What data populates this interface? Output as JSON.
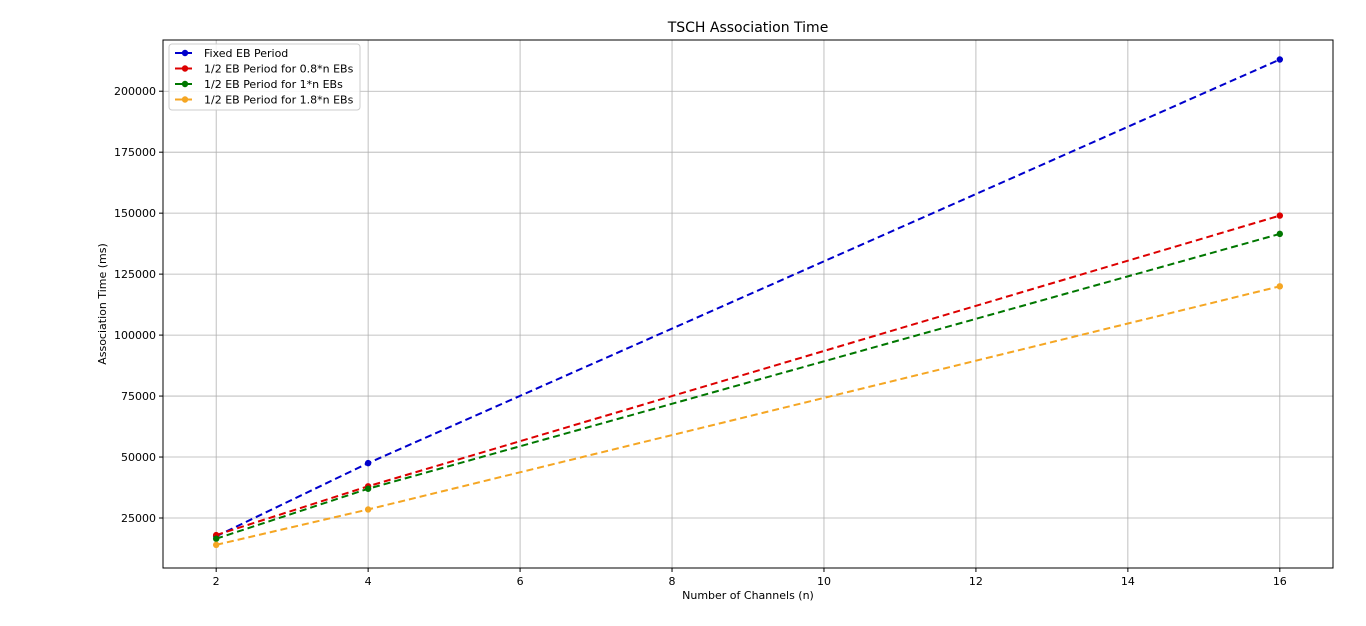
{
  "chart_data": {
    "type": "line",
    "title": "TSCH Association Time",
    "xlabel": "Number of Channels (n)",
    "ylabel": "Association Time (ms)",
    "xlim": [
      1.3,
      16.7
    ],
    "ylim": [
      4500,
      221000
    ],
    "xticks": [
      2,
      4,
      6,
      8,
      10,
      12,
      14,
      16
    ],
    "yticks": [
      25000,
      50000,
      75000,
      100000,
      125000,
      150000,
      175000,
      200000
    ],
    "grid": true,
    "legend_position": "top-left",
    "x": [
      2,
      4,
      16
    ],
    "series": [
      {
        "name": "Fixed EB Period",
        "values": [
          17500,
          47500,
          213000
        ],
        "color": "#0000cc"
      },
      {
        "name": "1/2 EB Period for 0.8*n EBs",
        "values": [
          18000,
          38000,
          149000
        ],
        "color": "#dd0000"
      },
      {
        "name": "1/2 EB Period for 1*n EBs",
        "values": [
          16500,
          37000,
          141500
        ],
        "color": "#007700"
      },
      {
        "name": "1/2 EB Period for 1.8*n EBs",
        "values": [
          14000,
          28500,
          120000
        ],
        "color": "#f5a623"
      }
    ]
  }
}
